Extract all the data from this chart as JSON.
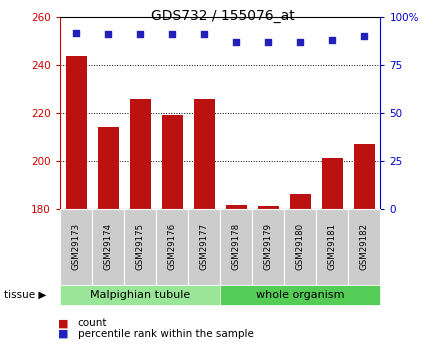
{
  "title": "GDS732 / 155076_at",
  "samples": [
    "GSM29173",
    "GSM29174",
    "GSM29175",
    "GSM29176",
    "GSM29177",
    "GSM29178",
    "GSM29179",
    "GSM29180",
    "GSM29181",
    "GSM29182"
  ],
  "counts": [
    244,
    214,
    226,
    219,
    226,
    181.5,
    181,
    186,
    201,
    207
  ],
  "percentiles": [
    92,
    91,
    91,
    91,
    91,
    87,
    87,
    87,
    88,
    90
  ],
  "groups": [
    {
      "label": "Malpighian tubule",
      "start": 0,
      "end": 5,
      "color": "#99e699"
    },
    {
      "label": "whole organism",
      "start": 5,
      "end": 10,
      "color": "#55cc55"
    }
  ],
  "ylim_left": [
    180,
    260
  ],
  "ylim_right": [
    0,
    100
  ],
  "yticks_left": [
    180,
    200,
    220,
    240,
    260
  ],
  "yticks_right": [
    0,
    25,
    50,
    75,
    100
  ],
  "bar_color": "#bb1111",
  "dot_color": "#2222bb",
  "bar_bottom": 180,
  "legend_count_label": "count",
  "legend_pct_label": "percentile rank within the sample",
  "tissue_label": "tissue",
  "left_axis_color": "#cc0000",
  "right_axis_color": "#0000cc",
  "plot_bg": "#ffffff",
  "xticklabel_bg": "#cccccc"
}
